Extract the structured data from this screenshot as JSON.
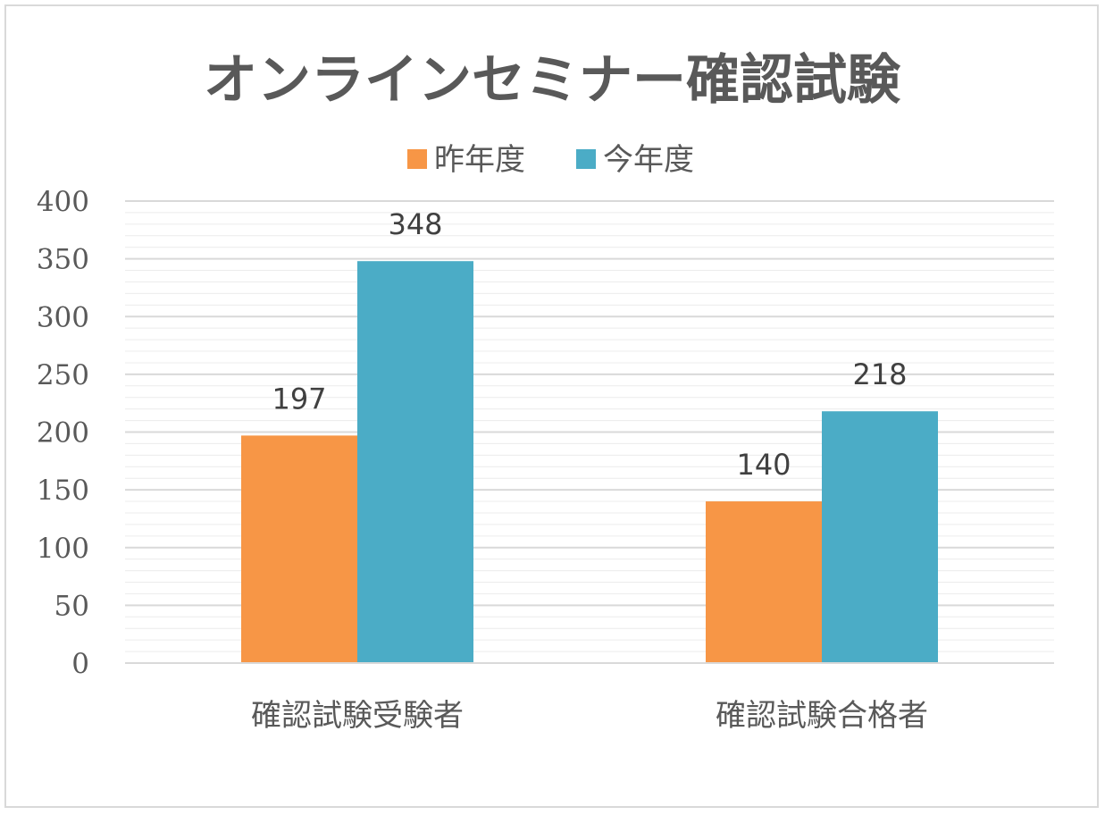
{
  "chart_data": {
    "type": "bar",
    "title": "オンラインセミナー確認試験",
    "categories": [
      "確認試験受験者",
      "確認試験合格者"
    ],
    "series": [
      {
        "name": "昨年度",
        "values": [
          197,
          140
        ],
        "color": "#f79646"
      },
      {
        "name": "今年度",
        "values": [
          348,
          218
        ],
        "color": "#4bacc6"
      }
    ],
    "ylim": [
      0,
      400
    ],
    "yticks": [
      0,
      50,
      100,
      150,
      200,
      250,
      300,
      350,
      400
    ],
    "minor_grid_step": 10,
    "grid": true,
    "legend_position": "top",
    "data_labels": true
  }
}
